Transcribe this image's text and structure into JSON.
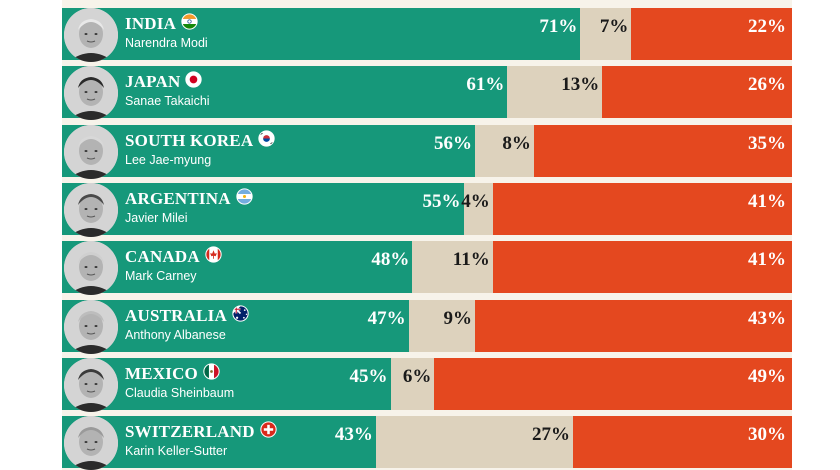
{
  "chart_data": {
    "type": "bar",
    "orientation": "horizontal",
    "stacked": true,
    "normalized_percent": true,
    "grid": false,
    "colors": {
      "approve": "#16987a",
      "neutral": "#ddd2bd",
      "disapprove": "#e4481f",
      "background": "#f7f3ea"
    },
    "rows": [
      {
        "country": "INDIA",
        "flag": "india-flag-icon",
        "leader": "Narendra Modi",
        "approve": 71,
        "neutral": 7,
        "disapprove": 22,
        "approve_label": "71%",
        "neutral_label": "7%",
        "disapprove_label": "22%"
      },
      {
        "country": "JAPAN",
        "flag": "japan-flag-icon",
        "leader": "Sanae Takaichi",
        "approve": 61,
        "neutral": 13,
        "disapprove": 26,
        "approve_label": "61%",
        "neutral_label": "13%",
        "disapprove_label": "26%"
      },
      {
        "country": "SOUTH KOREA",
        "flag": "south-korea-flag-icon",
        "leader": "Lee Jae-myung",
        "approve": 56,
        "neutral": 8,
        "disapprove": 35,
        "approve_label": "56%",
        "neutral_label": "8%",
        "disapprove_label": "35%"
      },
      {
        "country": "ARGENTINA",
        "flag": "argentina-flag-icon",
        "leader": "Javier Milei",
        "approve": 55,
        "neutral": 4,
        "disapprove": 41,
        "approve_label": "55%",
        "neutral_label": "4%",
        "disapprove_label": "41%"
      },
      {
        "country": "CANADA",
        "flag": "canada-flag-icon",
        "leader": "Mark Carney",
        "approve": 48,
        "neutral": 11,
        "disapprove": 41,
        "approve_label": "48%",
        "neutral_label": "11%",
        "disapprove_label": "41%"
      },
      {
        "country": "AUSTRALIA",
        "flag": "australia-flag-icon",
        "leader": "Anthony Albanese",
        "approve": 47,
        "neutral": 9,
        "disapprove": 43,
        "approve_label": "47%",
        "neutral_label": "9%",
        "disapprove_label": "43%"
      },
      {
        "country": "MEXICO",
        "flag": "mexico-flag-icon",
        "leader": "Claudia Sheinbaum",
        "approve": 45,
        "neutral": 6,
        "disapprove": 49,
        "approve_label": "45%",
        "neutral_label": "6%",
        "disapprove_label": "49%"
      },
      {
        "country": "SWITZERLAND",
        "flag": "switzerland-flag-icon",
        "leader": "Karin Keller-Sutter",
        "approve": 43,
        "neutral": 27,
        "disapprove": 30,
        "approve_label": "43%",
        "neutral_label": "27%",
        "disapprove_label": "30%"
      }
    ]
  }
}
